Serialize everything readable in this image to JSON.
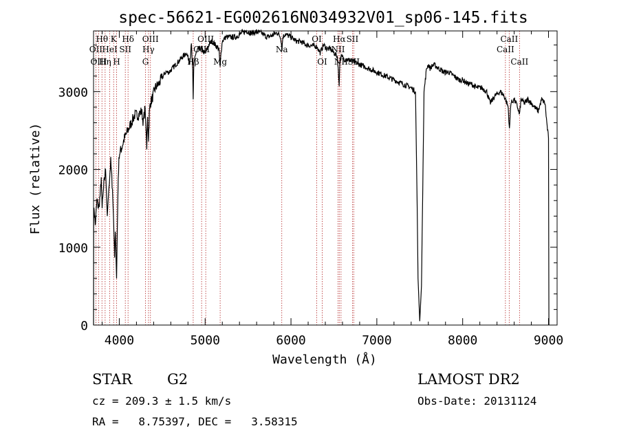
{
  "chart_data": {
    "type": "line",
    "title": "spec-56621-EG002616N034932V01_sp06-145.fits",
    "xlabel": "Wavelength (Å)",
    "ylabel": "Flux (relative)",
    "xlim": [
      3700,
      9100
    ],
    "ylim": [
      0,
      3780
    ],
    "xticks": [
      4000,
      5000,
      6000,
      7000,
      8000,
      9000
    ],
    "yticks": [
      0,
      1000,
      2000,
      3000
    ],
    "line_color": "#000000",
    "marker_color": "#b22222",
    "series": [
      {
        "x": [
          3700,
          3702,
          3708,
          3720,
          3740,
          3760,
          3780,
          3790,
          3800,
          3820,
          3840,
          3860,
          3880,
          3900,
          3920,
          3935,
          3945,
          3955,
          3968,
          3978,
          3988,
          4000,
          4020,
          4060,
          4100,
          4140,
          4180,
          4220,
          4260,
          4280,
          4300,
          4320,
          4330,
          4340,
          4350,
          4360,
          4380,
          4420,
          4460,
          4500,
          4540,
          4580,
          4620,
          4660,
          4700,
          4740,
          4780,
          4820,
          4840,
          4855,
          4861,
          4868,
          4880,
          4920,
          4960,
          5000,
          5040,
          5080,
          5120,
          5160,
          5175,
          5185,
          5200,
          5240,
          5300,
          5360,
          5420,
          5480,
          5540,
          5600,
          5660,
          5720,
          5780,
          5840,
          5880,
          5895,
          5905,
          5930,
          6000,
          6060,
          6120,
          6180,
          6240,
          6300,
          6340,
          6380,
          6420,
          6460,
          6500,
          6540,
          6555,
          6562,
          6570,
          6585,
          6620,
          6700,
          6800,
          6900,
          7000,
          7100,
          7200,
          7300,
          7400,
          7450,
          7470,
          7480,
          7500,
          7520,
          7550,
          7580,
          7600,
          7620,
          7660,
          7720,
          7780,
          7840,
          7900,
          7960,
          8000,
          8060,
          8100,
          8160,
          8220,
          8280,
          8320,
          8380,
          8440,
          8480,
          8500,
          8530,
          8545,
          8560,
          8600,
          8640,
          8662,
          8680,
          8720,
          8760,
          8800,
          8840,
          8880,
          8920,
          8960,
          8980,
          9000,
          9005
        ],
        "y": [
          0,
          1400,
          1500,
          1280,
          1600,
          1500,
          1700,
          1900,
          1500,
          1800,
          2000,
          1400,
          1800,
          2100,
          1750,
          1300,
          900,
          1200,
          600,
          1300,
          1900,
          2200,
          2250,
          2400,
          2500,
          2600,
          2700,
          2700,
          2750,
          2600,
          2800,
          2300,
          2650,
          2400,
          2700,
          2850,
          2900,
          3050,
          3100,
          3180,
          3250,
          3250,
          3300,
          3350,
          3400,
          3450,
          3500,
          3380,
          3600,
          3250,
          2900,
          3350,
          3450,
          3550,
          3550,
          3480,
          3600,
          3650,
          3600,
          3550,
          3300,
          3500,
          3650,
          3700,
          3700,
          3700,
          3750,
          3780,
          3750,
          3770,
          3750,
          3700,
          3720,
          3760,
          3700,
          3550,
          3700,
          3740,
          3700,
          3650,
          3640,
          3600,
          3590,
          3580,
          3500,
          3600,
          3550,
          3550,
          3500,
          3450,
          3200,
          3100,
          3400,
          3450,
          3420,
          3400,
          3350,
          3300,
          3250,
          3200,
          3150,
          3100,
          3050,
          3000,
          1500,
          600,
          50,
          500,
          3000,
          3300,
          3350,
          3300,
          3350,
          3300,
          3250,
          3250,
          3200,
          3150,
          3150,
          3100,
          3100,
          3050,
          3050,
          3000,
          2850,
          2950,
          3000,
          2950,
          2900,
          2800,
          2500,
          2850,
          2900,
          2800,
          2700,
          2900,
          2850,
          2900,
          2850,
          2800,
          2750,
          2900,
          2850,
          2600,
          2400,
          0
        ]
      }
    ],
    "lines": [
      {
        "label": "Hθ",
        "x": 3798,
        "row": 1
      },
      {
        "label": "OII",
        "x": 3727,
        "row": 2
      },
      {
        "label": "OIII",
        "x": 3760,
        "row": 3
      },
      {
        "label": "Hη",
        "x": 3835,
        "row": 3
      },
      {
        "label": "K",
        "x": 3934,
        "row": 1
      },
      {
        "label": "HeI",
        "x": 3889,
        "row": 2
      },
      {
        "label": "H",
        "x": 3969,
        "row": 3
      },
      {
        "label": "Hδ",
        "x": 4102,
        "row": 1
      },
      {
        "label": "SII",
        "x": 4070,
        "row": 2
      },
      {
        "label": "OIII",
        "x": 4363,
        "row": 1
      },
      {
        "label": "Hγ",
        "x": 4340,
        "row": 2
      },
      {
        "label": "G",
        "x": 4305,
        "row": 3
      },
      {
        "label": "OIII",
        "x": 5007,
        "row": 1
      },
      {
        "label": "OIII",
        "x": 4959,
        "row": 2
      },
      {
        "label": "Hβ",
        "x": 4861,
        "row": 3
      },
      {
        "label": "Mg",
        "x": 5175,
        "row": 3
      },
      {
        "label": "Na",
        "x": 5893,
        "row": 2
      },
      {
        "label": "OI",
        "x": 6300,
        "row": 1
      },
      {
        "label": "OI",
        "x": 6364,
        "row": 3
      },
      {
        "label": "Hα",
        "x": 6563,
        "row": 1
      },
      {
        "label": "SII",
        "x": 6716,
        "row": 1
      },
      {
        "label": "NII",
        "x": 6548,
        "row": 2
      },
      {
        "label": "NII",
        "x": 6583,
        "row": 3
      },
      {
        "label": "SII",
        "x": 6731,
        "row": 3
      },
      {
        "label": "CaII",
        "x": 8542,
        "row": 1
      },
      {
        "label": "CaII",
        "x": 8498,
        "row": 2
      },
      {
        "label": "CaII",
        "x": 8662,
        "row": 3
      }
    ]
  },
  "info": {
    "object": "STAR",
    "subclass": "G2",
    "survey": "LAMOST DR2",
    "cz": "cz = 209.3 ± 1.5 km/s",
    "obsdate": "Obs-Date: 20131124",
    "coords": "RA =   8.75397, DEC =   3.58315"
  }
}
